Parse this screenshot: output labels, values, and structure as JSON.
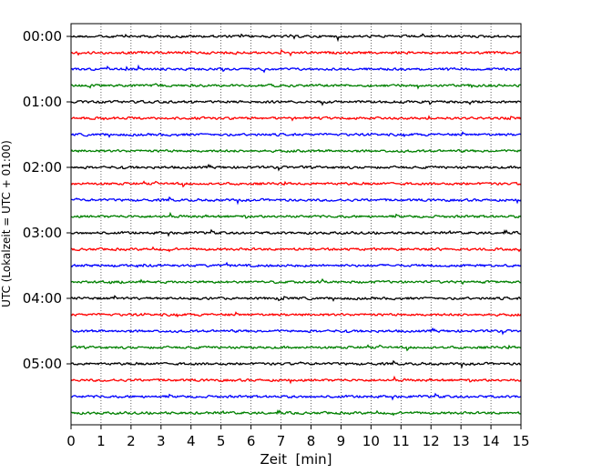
{
  "chart_data": {
    "type": "line",
    "title": "",
    "xlabel": "Zeit  [min]",
    "ylabel": "UTC (Lokalzeit = UTC + 01:00)",
    "xlim": [
      0,
      15
    ],
    "x_ticks": [
      "0",
      "1",
      "2",
      "3",
      "4",
      "5",
      "6",
      "7",
      "8",
      "9",
      "10",
      "11",
      "12",
      "13",
      "14",
      "15"
    ],
    "y_ticks": [
      "00:00",
      "01:00",
      "02:00",
      "03:00",
      "04:00",
      "05:00"
    ],
    "trace_interval_min": 15,
    "trace_count": 24,
    "trace_colors": [
      "#000000",
      "#ff0000",
      "#0000ff",
      "#008000"
    ],
    "grid": "vertical dotted lines at each minute",
    "legend": "none"
  }
}
